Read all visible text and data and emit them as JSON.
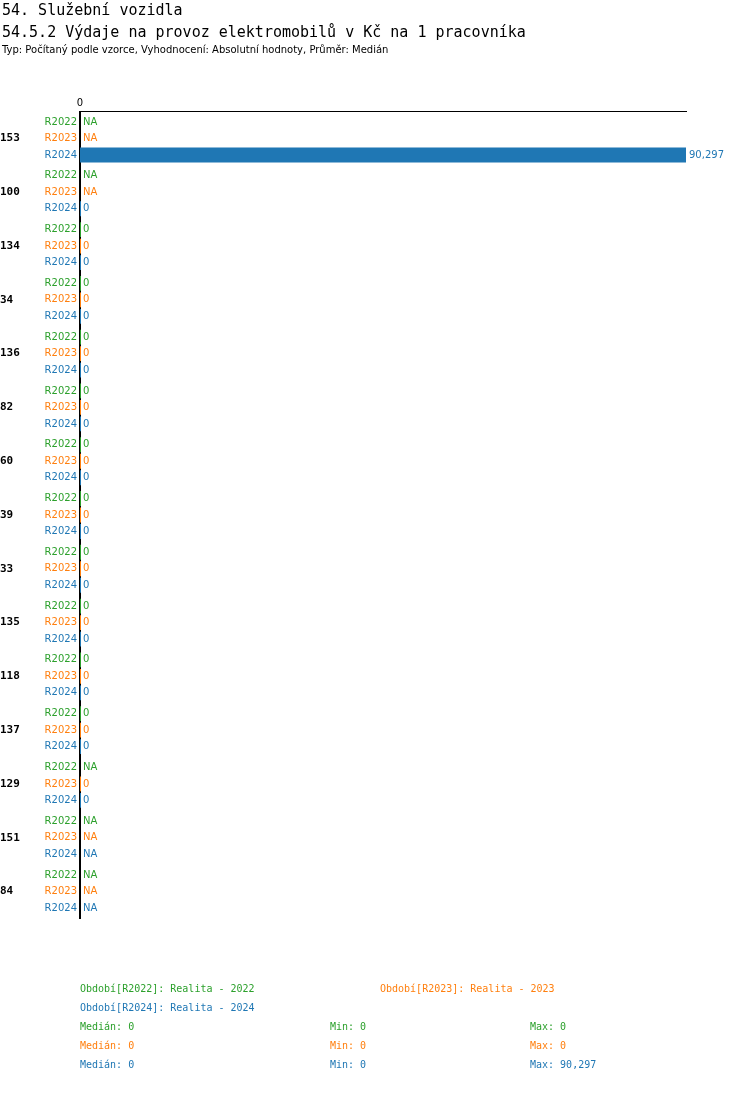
{
  "chart_data": {
    "type": "bar",
    "orientation": "horizontal",
    "title": "54. Služební vozidla",
    "subtitle": "54.5.2 Výdaje na provoz elektromobilů v Kč na 1 pracovníka",
    "categories": [
      "153",
      "100",
      "134",
      "34",
      "136",
      "82",
      "60",
      "39",
      "33",
      "135",
      "118",
      "137",
      "129",
      "151",
      "84"
    ],
    "series": [
      {
        "name": "R2022",
        "color": "#2ca02c",
        "values": [
          null,
          null,
          0,
          0,
          0,
          0,
          0,
          0,
          0,
          0,
          0,
          0,
          null,
          null,
          null
        ],
        "value_labels": [
          "NA",
          "NA",
          "0",
          "0",
          "0",
          "0",
          "0",
          "0",
          "0",
          "0",
          "0",
          "0",
          "NA",
          "NA",
          "NA"
        ]
      },
      {
        "name": "R2023",
        "color": "#ff7f0e",
        "values": [
          null,
          null,
          0,
          0,
          0,
          0,
          0,
          0,
          0,
          0,
          0,
          0,
          0,
          null,
          null
        ],
        "value_labels": [
          "NA",
          "NA",
          "0",
          "0",
          "0",
          "0",
          "0",
          "0",
          "0",
          "0",
          "0",
          "0",
          "0",
          "NA",
          "NA"
        ]
      },
      {
        "name": "R2024",
        "color": "#1f77b4",
        "values": [
          90297,
          0,
          0,
          0,
          0,
          0,
          0,
          0,
          0,
          0,
          0,
          0,
          0,
          null,
          null
        ],
        "value_labels": [
          "90,297",
          "0",
          "0",
          "0",
          "0",
          "0",
          "0",
          "0",
          "0",
          "0",
          "0",
          "0",
          "0",
          "NA",
          "NA"
        ]
      }
    ],
    "annotations": [
      "Typ: Počítaný podle vzorce, Vyhodnocení: Absolutní hodnoty, Průměr: Medián",
      "0",
      "Období[R2022]: Realita - 2022",
      "Období[R2023]: Realita - 2023",
      "Období[R2024]: Realita - 2024",
      "Medián: 0",
      "Min: 0",
      "Max: 0",
      "Medián: 0",
      "Min: 0",
      "Max: 0",
      "Medián: 0",
      "Min: 0",
      "Max: 90,297"
    ]
  }
}
